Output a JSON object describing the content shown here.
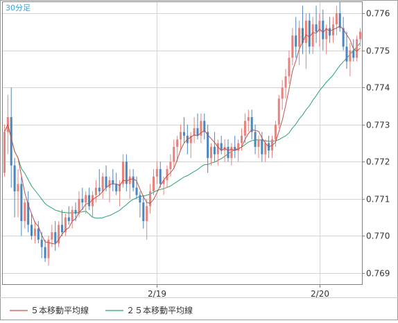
{
  "chart_data": {
    "type": "candlestick",
    "timeframe_label": "30分足",
    "x_tick_labels": [
      "2/19",
      "2/20"
    ],
    "y_ticks": [
      0.769,
      0.77,
      0.771,
      0.772,
      0.773,
      0.774,
      0.775,
      0.776
    ],
    "ylim": [
      0.7687,
      0.7763
    ],
    "grid": true,
    "legend": [
      {
        "name": "５本移動平均線",
        "color": "#c0504d"
      },
      {
        "name": "２５本移動平均線",
        "color": "#2aa36b"
      }
    ],
    "colors": {
      "bull": "#e8827c",
      "bear": "#4a86c0",
      "ma5": "#c0504d",
      "ma25": "#2aa36b",
      "title": "#3aa0d8",
      "grid": "#d4d4d4",
      "axis": "#808080"
    },
    "x_tick_candle_index": [
      45,
      93
    ],
    "candles": [
      [
        0.7717,
        0.773,
        0.7716,
        0.7728
      ],
      [
        0.7728,
        0.7738,
        0.7722,
        0.7732
      ],
      [
        0.7732,
        0.774,
        0.7713,
        0.7719
      ],
      [
        0.7719,
        0.7721,
        0.7705,
        0.7712
      ],
      [
        0.7712,
        0.7718,
        0.7705,
        0.7714
      ],
      [
        0.7714,
        0.7716,
        0.77,
        0.7704
      ],
      [
        0.7704,
        0.771,
        0.7702,
        0.7709
      ],
      [
        0.7709,
        0.7712,
        0.7701,
        0.7703
      ],
      [
        0.7703,
        0.7706,
        0.7699,
        0.77
      ],
      [
        0.77,
        0.7704,
        0.7698,
        0.7702
      ],
      [
        0.7702,
        0.7704,
        0.7698,
        0.7699
      ],
      [
        0.7699,
        0.7701,
        0.7694,
        0.7697
      ],
      [
        0.7697,
        0.7699,
        0.7693,
        0.7694
      ],
      [
        0.7694,
        0.77,
        0.7692,
        0.7699
      ],
      [
        0.7699,
        0.7703,
        0.7697,
        0.7701
      ],
      [
        0.7701,
        0.7704,
        0.7696,
        0.7698
      ],
      [
        0.7698,
        0.7704,
        0.7697,
        0.7703
      ],
      [
        0.7703,
        0.7707,
        0.77,
        0.7701
      ],
      [
        0.7701,
        0.7706,
        0.77,
        0.7705
      ],
      [
        0.7705,
        0.7708,
        0.7703,
        0.7704
      ],
      [
        0.7704,
        0.7708,
        0.7702,
        0.7707
      ],
      [
        0.7707,
        0.7709,
        0.7704,
        0.7706
      ],
      [
        0.7706,
        0.7712,
        0.7705,
        0.771
      ],
      [
        0.771,
        0.7713,
        0.7707,
        0.7709
      ],
      [
        0.7709,
        0.7712,
        0.7706,
        0.7711
      ],
      [
        0.7711,
        0.7713,
        0.7707,
        0.7708
      ],
      [
        0.7708,
        0.7712,
        0.7705,
        0.7711
      ],
      [
        0.7711,
        0.7715,
        0.7709,
        0.7713
      ],
      [
        0.7713,
        0.7718,
        0.7711,
        0.7712
      ],
      [
        0.7712,
        0.7717,
        0.771,
        0.7716
      ],
      [
        0.7716,
        0.7719,
        0.7712,
        0.7713
      ],
      [
        0.7713,
        0.7716,
        0.7709,
        0.7715
      ],
      [
        0.7715,
        0.7718,
        0.7712,
        0.7714
      ],
      [
        0.7714,
        0.7717,
        0.7711,
        0.7712
      ],
      [
        0.7712,
        0.7715,
        0.7708,
        0.7714
      ],
      [
        0.7714,
        0.7722,
        0.7713,
        0.772
      ],
      [
        0.772,
        0.7722,
        0.7712,
        0.7714
      ],
      [
        0.7714,
        0.7718,
        0.771,
        0.7716
      ],
      [
        0.7716,
        0.7718,
        0.7712,
        0.7713
      ],
      [
        0.7713,
        0.7716,
        0.771,
        0.7711
      ],
      [
        0.7711,
        0.7712,
        0.7705,
        0.7709
      ],
      [
        0.7709,
        0.7711,
        0.7702,
        0.7704
      ],
      [
        0.7704,
        0.771,
        0.7699,
        0.7708
      ],
      [
        0.7708,
        0.7714,
        0.7706,
        0.7712
      ],
      [
        0.7712,
        0.7718,
        0.7711,
        0.7716
      ],
      [
        0.7716,
        0.772,
        0.7714,
        0.7718
      ],
      [
        0.7718,
        0.772,
        0.7713,
        0.7714
      ],
      [
        0.7714,
        0.7716,
        0.7711,
        0.7715
      ],
      [
        0.7715,
        0.7719,
        0.7713,
        0.7718
      ],
      [
        0.7718,
        0.7722,
        0.7716,
        0.772
      ],
      [
        0.772,
        0.7726,
        0.7718,
        0.7724
      ],
      [
        0.7724,
        0.7727,
        0.772,
        0.7726
      ],
      [
        0.7726,
        0.773,
        0.7723,
        0.7728
      ],
      [
        0.7728,
        0.7732,
        0.7725,
        0.7727
      ],
      [
        0.7727,
        0.773,
        0.7722,
        0.7725
      ],
      [
        0.7725,
        0.7728,
        0.7721,
        0.7727
      ],
      [
        0.7727,
        0.7732,
        0.7725,
        0.7729
      ],
      [
        0.7729,
        0.7733,
        0.7726,
        0.7727
      ],
      [
        0.7727,
        0.7733,
        0.7725,
        0.7731
      ],
      [
        0.7731,
        0.7733,
        0.7726,
        0.7728
      ],
      [
        0.7728,
        0.773,
        0.7717,
        0.7721
      ],
      [
        0.7721,
        0.7725,
        0.7719,
        0.7724
      ],
      [
        0.7724,
        0.7728,
        0.772,
        0.7722
      ],
      [
        0.7722,
        0.7726,
        0.7719,
        0.7725
      ],
      [
        0.7725,
        0.7727,
        0.7722,
        0.7723
      ],
      [
        0.7723,
        0.7726,
        0.772,
        0.7724
      ],
      [
        0.7724,
        0.7726,
        0.772,
        0.7721
      ],
      [
        0.7721,
        0.7725,
        0.7719,
        0.7724
      ],
      [
        0.7724,
        0.7727,
        0.7721,
        0.7723
      ],
      [
        0.7723,
        0.7726,
        0.772,
        0.7725
      ],
      [
        0.7725,
        0.7729,
        0.7723,
        0.7727
      ],
      [
        0.7727,
        0.7733,
        0.7725,
        0.7731
      ],
      [
        0.7731,
        0.7734,
        0.7728,
        0.7732
      ],
      [
        0.7732,
        0.7734,
        0.7726,
        0.7728
      ],
      [
        0.7728,
        0.773,
        0.7722,
        0.7724
      ],
      [
        0.7724,
        0.7727,
        0.7721,
        0.7726
      ],
      [
        0.7726,
        0.7728,
        0.772,
        0.7722
      ],
      [
        0.7722,
        0.7726,
        0.772,
        0.7725
      ],
      [
        0.7725,
        0.7727,
        0.7721,
        0.7723
      ],
      [
        0.7723,
        0.7727,
        0.7721,
        0.7726
      ],
      [
        0.7726,
        0.7731,
        0.7724,
        0.773
      ],
      [
        0.773,
        0.7738,
        0.7729,
        0.7737
      ],
      [
        0.7737,
        0.7742,
        0.7734,
        0.774
      ],
      [
        0.774,
        0.7745,
        0.7737,
        0.7743
      ],
      [
        0.7743,
        0.775,
        0.7741,
        0.7748
      ],
      [
        0.7748,
        0.7756,
        0.7746,
        0.7754
      ],
      [
        0.7754,
        0.7759,
        0.7748,
        0.7751
      ],
      [
        0.7751,
        0.7758,
        0.7746,
        0.7756
      ],
      [
        0.7756,
        0.7762,
        0.7749,
        0.7752
      ],
      [
        0.7752,
        0.776,
        0.7745,
        0.7758
      ],
      [
        0.7758,
        0.776,
        0.7749,
        0.7751
      ],
      [
        0.7751,
        0.7759,
        0.7749,
        0.7757
      ],
      [
        0.7757,
        0.7762,
        0.7752,
        0.7755
      ],
      [
        0.7755,
        0.776,
        0.7751,
        0.7758
      ],
      [
        0.7758,
        0.7761,
        0.775,
        0.7753
      ],
      [
        0.7753,
        0.7757,
        0.7749,
        0.7756
      ],
      [
        0.7756,
        0.7759,
        0.7752,
        0.7754
      ],
      [
        0.7754,
        0.7759,
        0.7752,
        0.7757
      ],
      [
        0.7757,
        0.7762,
        0.7754,
        0.776
      ],
      [
        0.776,
        0.7763,
        0.7755,
        0.7756
      ],
      [
        0.7756,
        0.7759,
        0.775,
        0.7751
      ],
      [
        0.7751,
        0.7755,
        0.7745,
        0.7747
      ],
      [
        0.7747,
        0.7752,
        0.7743,
        0.775
      ],
      [
        0.775,
        0.7753,
        0.7747,
        0.7748
      ],
      [
        0.7748,
        0.7754,
        0.7747,
        0.7753
      ],
      [
        0.7753,
        0.7756,
        0.7751,
        0.7755
      ]
    ]
  }
}
